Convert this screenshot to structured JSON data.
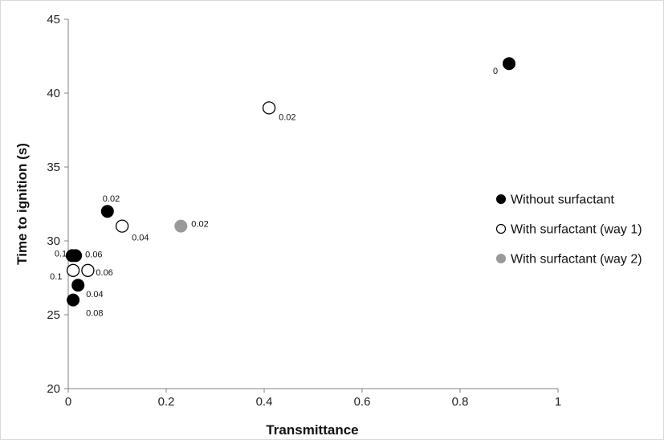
{
  "chart_data": {
    "type": "scatter",
    "title": "",
    "xlabel": "Transmittance",
    "ylabel": "Time to ignition (s)",
    "xlim": [
      0,
      1
    ],
    "ylim": [
      20,
      45
    ],
    "x_ticks": [
      "0",
      "0.2",
      "0.4",
      "0.6",
      "0.8",
      "1"
    ],
    "y_ticks": [
      "20",
      "25",
      "30",
      "35",
      "40",
      "45"
    ],
    "grid": false,
    "legend_position": "right",
    "series": [
      {
        "name": "Without surfactant",
        "color": "#000000",
        "fill": "filled",
        "points": [
          {
            "x": 0.9,
            "y": 42,
            "label": "0"
          },
          {
            "x": 0.08,
            "y": 32,
            "label": "0.02"
          },
          {
            "x": 0.02,
            "y": 27,
            "label": "0.04"
          },
          {
            "x": 0.015,
            "y": 29,
            "label": "0.06"
          },
          {
            "x": 0.01,
            "y": 26,
            "label": "0.08"
          },
          {
            "x": 0.008,
            "y": 29,
            "label": "0.1"
          }
        ]
      },
      {
        "name": "With surfactant (way 1)",
        "color": "#000000",
        "fill": "hollow",
        "points": [
          {
            "x": 0.41,
            "y": 39,
            "label": "0.02"
          },
          {
            "x": 0.11,
            "y": 31,
            "label": "0.04"
          },
          {
            "x": 0.04,
            "y": 28,
            "label": "0.06"
          },
          {
            "x": 0.01,
            "y": 28,
            "label": "0.1"
          }
        ]
      },
      {
        "name": "With surfactant (way 2)",
        "color": "#999999",
        "fill": "filled",
        "points": [
          {
            "x": 0.23,
            "y": 31,
            "label": "0.02"
          }
        ]
      }
    ]
  }
}
